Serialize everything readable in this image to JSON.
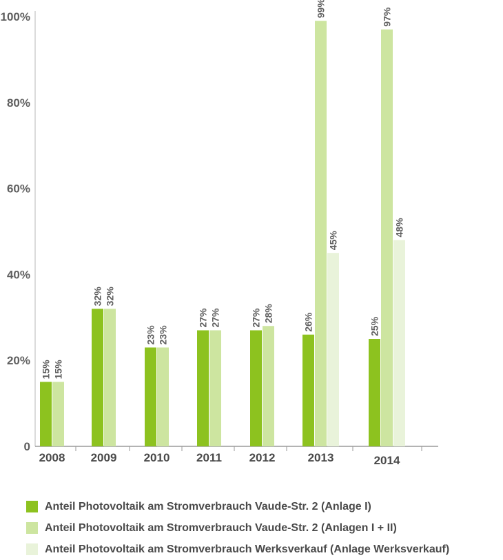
{
  "chart_data": {
    "type": "bar",
    "categories": [
      "2008",
      "2009",
      "2010",
      "2011",
      "2012",
      "2013",
      "2014"
    ],
    "series": [
      {
        "name": "Anteil Photovoltaik am Stromverbrauch Vaude-Str. 2 (Anlage I)",
        "color": "#8dc21f",
        "values": [
          15,
          32,
          23,
          27,
          27,
          26,
          25
        ],
        "labels": [
          "15%",
          "32%",
          "23%",
          "27%",
          "27%",
          "26%",
          "25%"
        ]
      },
      {
        "name": "Anteil Photovoltaik am Stromverbrauch Vaude-Str. 2 (Anlagen I + II)",
        "color": "#cde5a0",
        "values": [
          15,
          32,
          23,
          27,
          28,
          99,
          97
        ],
        "labels": [
          "15%",
          "32%",
          "23%",
          "27%",
          "28%",
          "99%",
          "97%"
        ]
      },
      {
        "name": "Anteil Photovoltaik am Stromverbrauch Werksverkauf (Anlage Werksverkauf)",
        "color": "#e9f3da",
        "values": [
          null,
          null,
          null,
          null,
          null,
          45,
          48
        ],
        "labels": [
          "",
          "",
          "",
          "",
          "",
          "45%",
          "48%"
        ]
      }
    ],
    "yticks": [
      "0",
      "20%",
      "40%",
      "60%",
      "80%",
      "100%"
    ],
    "ytick_values": [
      0,
      20,
      40,
      60,
      80,
      100
    ],
    "ylim": [
      0,
      100
    ],
    "grid": false,
    "legend_position": "bottom-left",
    "title": "",
    "xlabel": "",
    "ylabel": ""
  }
}
